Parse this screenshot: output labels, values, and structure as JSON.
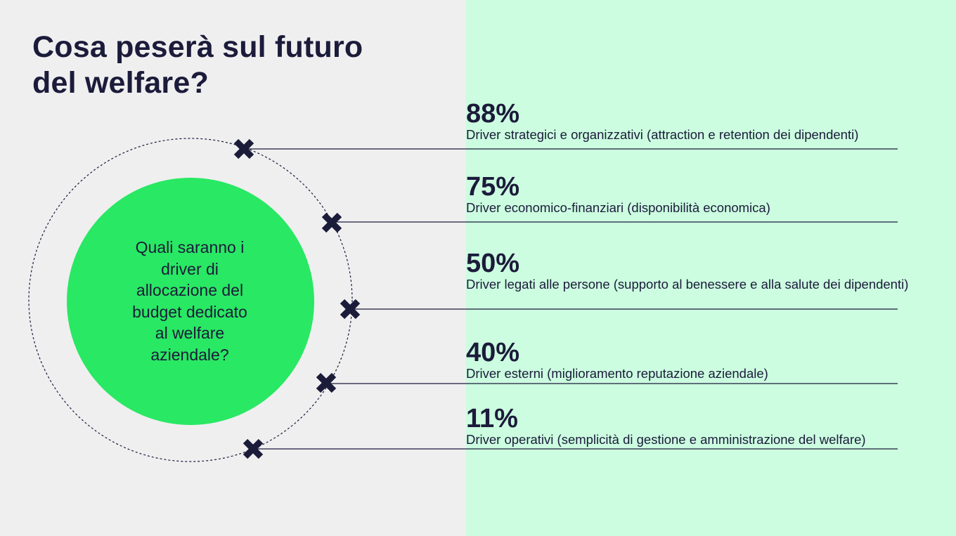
{
  "title": {
    "line1": "Cosa peserà sul futuro",
    "line2": "del welfare?"
  },
  "question": {
    "lines": [
      "Quali saranno i",
      "driver di",
      "allocazione del",
      "budget dedicato",
      "al welfare",
      "aziendale?"
    ]
  },
  "stats": [
    {
      "percent": "88%",
      "label": "Driver strategici e organizzativi (attraction e retention dei dipendenti)",
      "value": 88
    },
    {
      "percent": "75%",
      "label": "Driver economico-finanziari (disponibilità economica)",
      "value": 75
    },
    {
      "percent": "50%",
      "label": "Driver legati alle persone (supporto al benessere e alla salute dei dipendenti)",
      "value": 50
    },
    {
      "percent": "40%",
      "label": "Driver esterni (miglioramento reputazione aziendale)",
      "value": 40
    },
    {
      "percent": "11%",
      "label": "Driver operativi (semplicità di gestione e amministrazione del welfare)",
      "value": 11
    }
  ],
  "colors": {
    "background": "#efeff0",
    "right_panel": "#ccfde0",
    "circle": "#29e863",
    "navy": "#1b1b3a"
  },
  "icons": {
    "marker": "cross-marker-icon"
  }
}
